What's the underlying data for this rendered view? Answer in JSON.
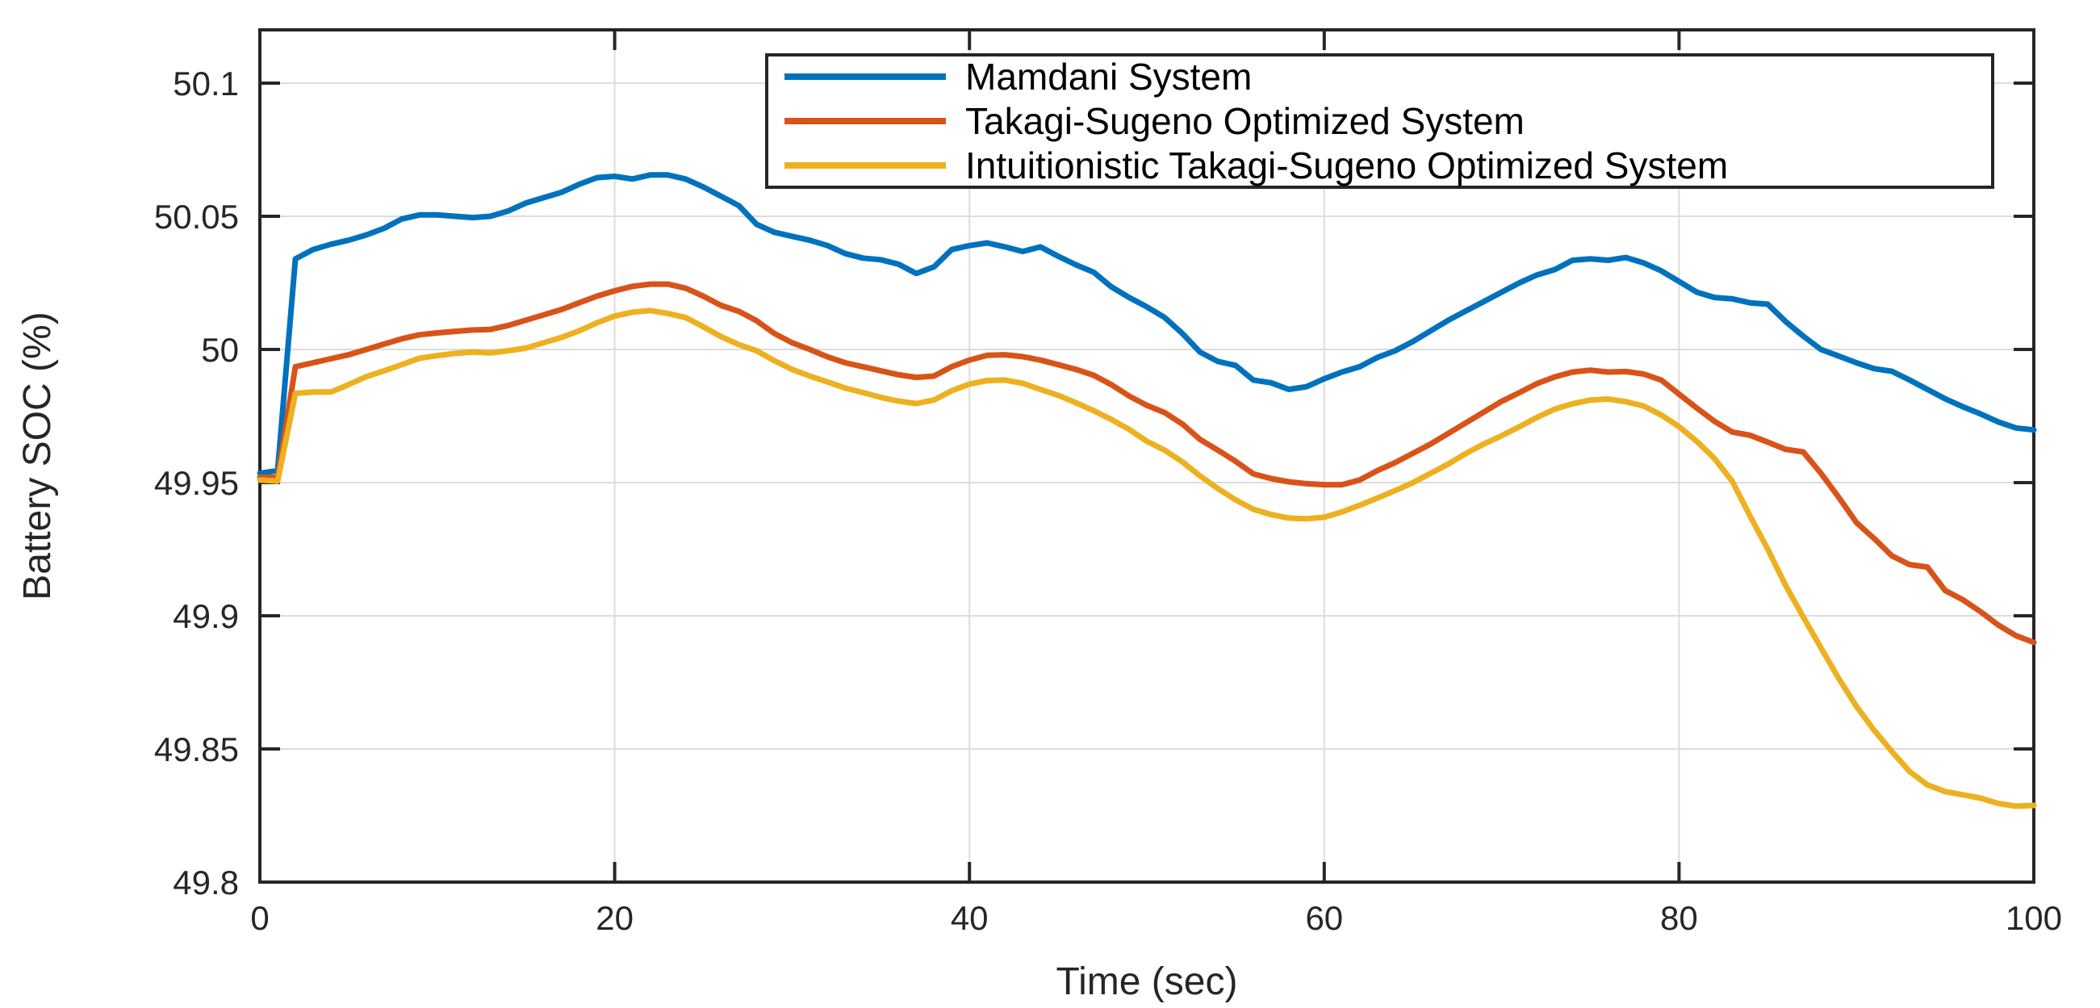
{
  "figure": {
    "background": "#ffffff",
    "axes_color": "#262626",
    "grid_color": "#dcdcdc",
    "tick_len": 25,
    "line_width": 7
  },
  "chart_data": {
    "type": "line",
    "title": "",
    "xlabel": "Time (sec)",
    "ylabel": "Battery SOC (%)",
    "xlim": [
      0,
      100
    ],
    "ylim": [
      49.8,
      50.12
    ],
    "xticks": [
      0,
      20,
      40,
      60,
      80,
      100
    ],
    "xtick_labels": [
      "0",
      "20",
      "40",
      "60",
      "80",
      "100"
    ],
    "yticks": [
      49.8,
      49.85,
      49.9,
      49.95,
      50,
      50.05,
      50.1
    ],
    "ytick_labels": [
      "49.8",
      "49.85",
      "49.9",
      "49.95",
      "50",
      "50.05",
      "50.1"
    ],
    "grid": true,
    "legend_position": "inside-top",
    "x_start": 0,
    "x_step": 1,
    "series": [
      {
        "name": "Mamdani System",
        "color": "#0072BD",
        "values": [
          49.9535,
          49.9545,
          50.034,
          50.0375,
          50.0395,
          50.041,
          50.043,
          50.0455,
          50.049,
          50.0505,
          50.0505,
          50.05,
          50.0495,
          50.05,
          50.052,
          50.055,
          50.057,
          50.059,
          50.062,
          50.0645,
          50.065,
          50.064,
          50.0655,
          50.0655,
          50.064,
          50.061,
          50.0575,
          50.054,
          50.047,
          50.044,
          50.0425,
          50.041,
          50.039,
          50.036,
          50.0343,
          50.0337,
          50.032,
          50.0285,
          50.031,
          50.0375,
          50.039,
          50.04,
          50.0385,
          50.0368,
          50.0385,
          50.035,
          50.0318,
          50.029,
          50.0235,
          50.0195,
          50.016,
          50.012,
          50.006,
          49.999,
          49.9955,
          49.994,
          49.9885,
          49.9875,
          49.985,
          49.986,
          49.989,
          49.9915,
          49.9935,
          49.997,
          49.9995,
          50.003,
          50.007,
          50.011,
          50.0145,
          50.018,
          50.0215,
          50.025,
          50.028,
          50.03,
          50.0335,
          50.034,
          50.0335,
          50.0345,
          50.0325,
          50.0295,
          50.0255,
          50.0215,
          50.0195,
          50.019,
          50.0175,
          50.017,
          50.0105,
          50.005,
          50.0,
          49.9975,
          49.995,
          49.9928,
          49.9918,
          49.9885,
          49.985,
          49.9815,
          49.9785,
          49.9758,
          49.9728,
          49.9705,
          49.9698
        ]
      },
      {
        "name": "Takagi-Sugeno Optimized System",
        "color": "#D95319",
        "values": [
          49.952,
          49.952,
          49.9935,
          49.995,
          49.9965,
          49.998,
          50.0,
          50.002,
          50.004,
          50.0055,
          50.0062,
          50.0068,
          50.0073,
          50.0075,
          50.009,
          50.011,
          50.013,
          50.015,
          50.0175,
          50.02,
          50.022,
          50.0237,
          50.0245,
          50.0245,
          50.023,
          50.02,
          50.0165,
          50.0143,
          50.0108,
          50.006,
          50.0025,
          50.0,
          49.9972,
          49.995,
          49.9935,
          49.992,
          49.9905,
          49.9895,
          49.99,
          49.9935,
          49.996,
          49.9978,
          49.998,
          49.9973,
          49.996,
          49.9943,
          49.9925,
          49.9903,
          49.9868,
          49.9825,
          49.979,
          49.9763,
          49.972,
          49.9662,
          49.9622,
          49.958,
          49.9533,
          49.9515,
          49.9503,
          49.9496,
          49.9492,
          49.9492,
          49.951,
          49.9545,
          49.9575,
          49.961,
          49.9645,
          49.9685,
          49.9725,
          49.9765,
          49.9805,
          49.9838,
          49.9872,
          49.9897,
          49.9915,
          49.9922,
          49.9915,
          49.9917,
          49.9908,
          49.9885,
          49.9832,
          49.978,
          49.973,
          49.969,
          49.9678,
          49.9652,
          49.9625,
          49.9615,
          49.9535,
          49.9445,
          49.935,
          49.929,
          49.9225,
          49.9192,
          49.9183,
          49.9095,
          49.906,
          49.9015,
          49.8965,
          49.8925,
          49.89
        ]
      },
      {
        "name": "Intuitionistic Takagi-Sugeno Optimized System",
        "color": "#EDB120",
        "values": [
          49.951,
          49.9505,
          49.9835,
          49.984,
          49.984,
          49.9868,
          49.9898,
          49.992,
          49.9943,
          49.9967,
          49.9977,
          49.9985,
          49.999,
          49.9987,
          49.9995,
          50.0005,
          50.0025,
          50.0045,
          50.007,
          50.01,
          50.0125,
          50.014,
          50.0146,
          50.0135,
          50.012,
          50.0085,
          50.0048,
          50.0018,
          49.9995,
          49.9958,
          49.9925,
          49.99,
          49.9878,
          49.9855,
          49.9838,
          49.982,
          49.9806,
          49.9797,
          49.981,
          49.9845,
          49.987,
          49.9883,
          49.9885,
          49.9873,
          49.985,
          49.9828,
          49.98,
          49.977,
          49.9737,
          49.97,
          49.9655,
          49.9622,
          49.9578,
          49.9525,
          49.9478,
          49.9435,
          49.94,
          49.938,
          49.9367,
          49.9364,
          49.937,
          49.939,
          49.9415,
          49.9442,
          49.947,
          49.95,
          49.9535,
          49.957,
          49.961,
          49.9645,
          49.9676,
          49.971,
          49.9745,
          49.9776,
          49.9796,
          49.981,
          49.9814,
          49.9804,
          49.9788,
          49.9754,
          49.971,
          49.9655,
          49.959,
          49.9505,
          49.9375,
          49.925,
          49.9115,
          49.8995,
          49.888,
          49.8765,
          49.866,
          49.857,
          49.849,
          49.8415,
          49.8365,
          49.834,
          49.8328,
          49.8315,
          49.8295,
          49.8285,
          49.8288
        ]
      }
    ]
  }
}
